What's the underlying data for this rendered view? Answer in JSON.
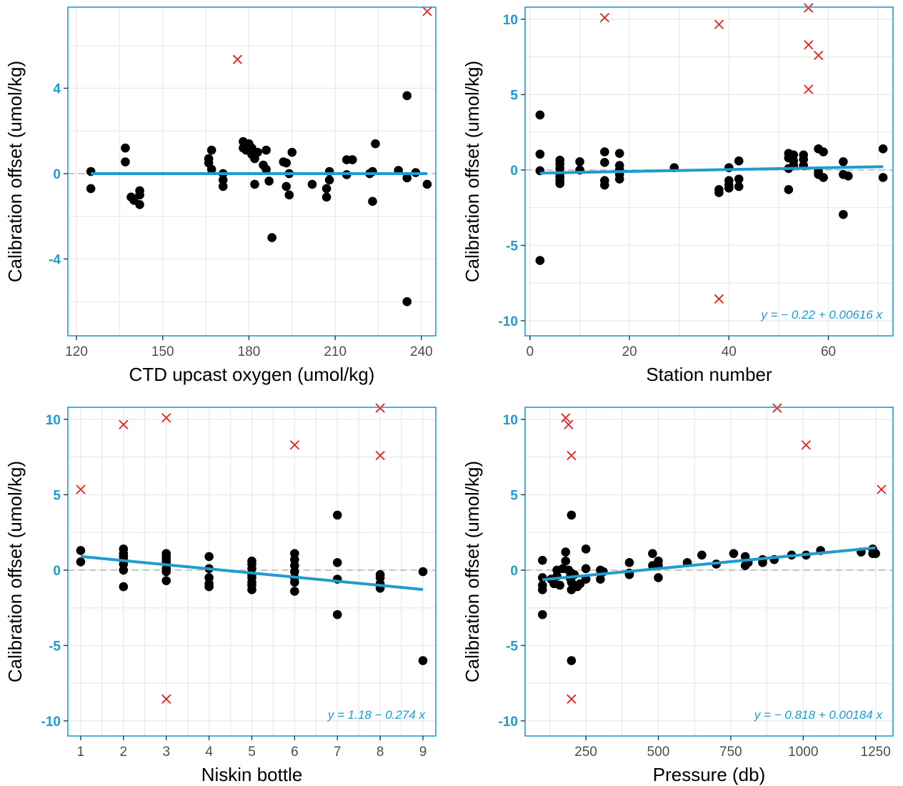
{
  "colors": {
    "points": "#000000",
    "outliers": "#e0231d",
    "fit_line": "#1f9bd1",
    "panel_border": "#1f9bd1",
    "zero_line": "#bdbdbd",
    "grid": "#ebebeb"
  },
  "chart_data": [
    {
      "type": "scatter",
      "xlabel": "CTD upcast oxygen (umol/kg)",
      "ylabel": "Calibration offset (umol/kg)",
      "xlim": [
        117,
        245
      ],
      "ylim": [
        -7.6,
        7.8
      ],
      "xticks": [
        120,
        150,
        180,
        210,
        240
      ],
      "yticks": [
        -4,
        0,
        4
      ],
      "ytick_labels": [
        "-4",
        "0",
        "4"
      ],
      "grid": true,
      "fit_line": {
        "x": [
          125,
          242
        ],
        "y": [
          0.0,
          0.0
        ]
      },
      "equation": "",
      "points": [
        [
          125,
          0.1
        ],
        [
          125,
          -0.7
        ],
        [
          137,
          1.2
        ],
        [
          137,
          0.55
        ],
        [
          139,
          -1.1
        ],
        [
          140,
          -1.25
        ],
        [
          142,
          -1.45
        ],
        [
          142,
          -0.8
        ],
        [
          142,
          -1.0
        ],
        [
          166,
          0.7
        ],
        [
          166,
          0.5
        ],
        [
          167,
          0.2
        ],
        [
          167,
          1.1
        ],
        [
          171,
          -0.6
        ],
        [
          171,
          -0.3
        ],
        [
          171,
          0.0
        ],
        [
          178,
          1.5
        ],
        [
          178,
          1.2
        ],
        [
          179,
          1.1
        ],
        [
          180,
          1.4
        ],
        [
          181,
          0.9
        ],
        [
          181,
          1.2
        ],
        [
          182,
          0.7
        ],
        [
          182,
          -0.5
        ],
        [
          183,
          1.0
        ],
        [
          185,
          0.4
        ],
        [
          186,
          0.2
        ],
        [
          186,
          1.1
        ],
        [
          187,
          -0.35
        ],
        [
          188,
          -3.0
        ],
        [
          192,
          0.55
        ],
        [
          193,
          0.5
        ],
        [
          193,
          -0.6
        ],
        [
          194,
          -1.0
        ],
        [
          194,
          0.0
        ],
        [
          195,
          1.0
        ],
        [
          202,
          -0.5
        ],
        [
          207,
          -0.7
        ],
        [
          207,
          -1.1
        ],
        [
          208,
          -0.3
        ],
        [
          208,
          0.1
        ],
        [
          214,
          0.65
        ],
        [
          214,
          -0.05
        ],
        [
          216,
          0.65
        ],
        [
          222,
          0.0
        ],
        [
          223,
          0.1
        ],
        [
          223,
          -1.3
        ],
        [
          224,
          1.4
        ],
        [
          232,
          0.15
        ],
        [
          235,
          -0.2
        ],
        [
          235,
          -6.0
        ],
        [
          235,
          3.65
        ],
        [
          238,
          0.05
        ],
        [
          242,
          -0.5
        ]
      ],
      "outliers": [
        [
          176,
          5.35
        ],
        [
          242,
          7.6
        ]
      ]
    },
    {
      "type": "scatter",
      "xlabel": "Station number",
      "ylabel": "Calibration offset (umol/kg)",
      "xlim": [
        -1,
        73
      ],
      "ylim": [
        -11,
        10.8
      ],
      "xticks": [
        0,
        20,
        40,
        60
      ],
      "yticks": [
        -10,
        -5,
        0,
        5,
        10
      ],
      "ytick_labels": [
        "-10",
        "-5",
        "0",
        "5",
        "10"
      ],
      "grid": true,
      "fit_line": {
        "x": [
          2,
          71
        ],
        "y": [
          -0.208,
          0.217
        ]
      },
      "equation": "y = − 0.22 + 0.00616 x",
      "points": [
        [
          2,
          3.65
        ],
        [
          2,
          1.05
        ],
        [
          2,
          -0.05
        ],
        [
          2,
          -6.0
        ],
        [
          6,
          0.65
        ],
        [
          6,
          0.4
        ],
        [
          6,
          0.1
        ],
        [
          6,
          -0.2
        ],
        [
          6,
          -0.45
        ],
        [
          6,
          -0.7
        ],
        [
          6,
          -0.9
        ],
        [
          10,
          0.55
        ],
        [
          10,
          0.0
        ],
        [
          15,
          1.2
        ],
        [
          15,
          0.5
        ],
        [
          15,
          -0.7
        ],
        [
          15,
          -1.0
        ],
        [
          18,
          1.1
        ],
        [
          18,
          0.3
        ],
        [
          18,
          0.0
        ],
        [
          18,
          -0.3
        ],
        [
          18,
          -0.6
        ],
        [
          29,
          0.15
        ],
        [
          38,
          -1.3
        ],
        [
          38,
          -1.5
        ],
        [
          40,
          0.15
        ],
        [
          40,
          -0.7
        ],
        [
          40,
          -1.0
        ],
        [
          40,
          -1.2
        ],
        [
          42,
          0.6
        ],
        [
          42,
          -0.6
        ],
        [
          42,
          -1.1
        ],
        [
          52,
          1.1
        ],
        [
          52,
          0.8
        ],
        [
          52,
          0.1
        ],
        [
          52,
          -1.3
        ],
        [
          53,
          1.0
        ],
        [
          53,
          0.6
        ],
        [
          53,
          0.3
        ],
        [
          55,
          1.0
        ],
        [
          55,
          0.7
        ],
        [
          55,
          0.3
        ],
        [
          58,
          1.4
        ],
        [
          58,
          -0.1
        ],
        [
          58,
          -0.3
        ],
        [
          59,
          1.2
        ],
        [
          59,
          -0.5
        ],
        [
          63,
          0.55
        ],
        [
          63,
          -0.3
        ],
        [
          63,
          -2.95
        ],
        [
          64,
          -0.4
        ],
        [
          71,
          1.4
        ],
        [
          71,
          -0.5
        ]
      ],
      "outliers": [
        [
          15,
          10.1
        ],
        [
          38,
          9.65
        ],
        [
          56,
          10.75
        ],
        [
          56,
          8.3
        ],
        [
          58,
          7.6
        ],
        [
          56,
          5.35
        ],
        [
          38,
          -8.55
        ]
      ]
    },
    {
      "type": "scatter",
      "xlabel": "Niskin bottle",
      "ylabel": "Calibration offset (umol/kg)",
      "xlim": [
        0.7,
        9.3
      ],
      "ylim": [
        -11,
        10.8
      ],
      "xticks": [
        1,
        2,
        3,
        4,
        5,
        6,
        7,
        8,
        9
      ],
      "yticks": [
        -10,
        -5,
        0,
        5,
        10
      ],
      "ytick_labels": [
        "-10",
        "-5",
        "0",
        "5",
        "10"
      ],
      "grid": true,
      "fit_line": {
        "x": [
          1,
          9
        ],
        "y": [
          0.906,
          -1.286
        ]
      },
      "equation": "y = 1.18 − 0.274 x",
      "points": [
        [
          1,
          1.3
        ],
        [
          1,
          0.55
        ],
        [
          2,
          1.4
        ],
        [
          2,
          1.1
        ],
        [
          2,
          0.9
        ],
        [
          2,
          0.7
        ],
        [
          2,
          0.4
        ],
        [
          2,
          0.0
        ],
        [
          2,
          -1.1
        ],
        [
          3,
          1.1
        ],
        [
          3,
          0.9
        ],
        [
          3,
          0.7
        ],
        [
          3,
          0.5
        ],
        [
          3,
          0.1
        ],
        [
          3,
          -0.1
        ],
        [
          3,
          -0.7
        ],
        [
          4,
          0.9
        ],
        [
          4,
          0.1
        ],
        [
          4,
          -0.5
        ],
        [
          4,
          -0.9
        ],
        [
          4,
          -1.1
        ],
        [
          5,
          0.6
        ],
        [
          5,
          0.4
        ],
        [
          5,
          0.1
        ],
        [
          5,
          -0.3
        ],
        [
          5,
          -0.5
        ],
        [
          5,
          -0.8
        ],
        [
          5,
          -1.0
        ],
        [
          5,
          -1.3
        ],
        [
          6,
          1.1
        ],
        [
          6,
          0.7
        ],
        [
          6,
          0.3
        ],
        [
          6,
          -0.1
        ],
        [
          6,
          -0.5
        ],
        [
          6,
          -0.8
        ],
        [
          6,
          -1.4
        ],
        [
          7,
          3.65
        ],
        [
          7,
          0.5
        ],
        [
          7,
          -0.6
        ],
        [
          7,
          -2.95
        ],
        [
          8,
          -0.3
        ],
        [
          8,
          -0.5
        ],
        [
          8,
          -0.9
        ],
        [
          8,
          -1.2
        ],
        [
          9,
          -0.1
        ],
        [
          9,
          -6.0
        ]
      ],
      "outliers": [
        [
          1,
          5.35
        ],
        [
          2,
          9.65
        ],
        [
          3,
          10.1
        ],
        [
          3,
          -8.55
        ],
        [
          6,
          8.3
        ],
        [
          8,
          10.75
        ],
        [
          8,
          7.6
        ]
      ]
    },
    {
      "type": "scatter",
      "xlabel": "Pressure (db)",
      "ylabel": "Calibration offset (umol/kg)",
      "xlim": [
        40,
        1310
      ],
      "ylim": [
        -11,
        10.8
      ],
      "xticks": [
        250,
        500,
        750,
        1000,
        1250
      ],
      "yticks": [
        -10,
        -5,
        0,
        5,
        10
      ],
      "ytick_labels": [
        "-10",
        "-5",
        "0",
        "5",
        "10"
      ],
      "grid": true,
      "fit_line": {
        "x": [
          100,
          1250
        ],
        "y": [
          -0.634,
          1.482
        ]
      },
      "equation": "y = − 0.818 + 0.00184 x",
      "points": [
        [
          100,
          0.65
        ],
        [
          100,
          -0.5
        ],
        [
          100,
          -1.0
        ],
        [
          100,
          -1.3
        ],
        [
          100,
          -2.95
        ],
        [
          130,
          -0.6
        ],
        [
          140,
          -0.9
        ],
        [
          150,
          0.0
        ],
        [
          150,
          -0.4
        ],
        [
          160,
          -1.0
        ],
        [
          170,
          0.1
        ],
        [
          180,
          1.2
        ],
        [
          180,
          0.6
        ],
        [
          190,
          0.0
        ],
        [
          195,
          -0.5
        ],
        [
          200,
          3.65
        ],
        [
          200,
          -0.2
        ],
        [
          200,
          -0.8
        ],
        [
          200,
          -1.3
        ],
        [
          200,
          -6.0
        ],
        [
          210,
          -0.3
        ],
        [
          220,
          -1.1
        ],
        [
          230,
          -0.9
        ],
        [
          250,
          1.4
        ],
        [
          250,
          0.1
        ],
        [
          250,
          -0.6
        ],
        [
          300,
          -0.6
        ],
        [
          300,
          0.0
        ],
        [
          310,
          -0.1
        ],
        [
          400,
          0.5
        ],
        [
          400,
          -0.2
        ],
        [
          400,
          -0.3
        ],
        [
          480,
          1.1
        ],
        [
          480,
          0.3
        ],
        [
          500,
          0.6
        ],
        [
          500,
          0.3
        ],
        [
          500,
          -0.5
        ],
        [
          600,
          0.5
        ],
        [
          650,
          1.0
        ],
        [
          700,
          0.4
        ],
        [
          760,
          1.1
        ],
        [
          800,
          0.9
        ],
        [
          800,
          0.3
        ],
        [
          810,
          0.5
        ],
        [
          860,
          0.7
        ],
        [
          860,
          0.5
        ],
        [
          900,
          0.7
        ],
        [
          960,
          1.0
        ],
        [
          1010,
          1.0
        ],
        [
          1060,
          1.3
        ],
        [
          1200,
          1.2
        ],
        [
          1240,
          1.4
        ],
        [
          1240,
          1.1
        ],
        [
          1250,
          1.1
        ]
      ],
      "outliers": [
        [
          180,
          10.1
        ],
        [
          190,
          9.65
        ],
        [
          200,
          7.6
        ],
        [
          200,
          -8.55
        ],
        [
          910,
          10.75
        ],
        [
          1010,
          8.3
        ],
        [
          1270,
          5.35
        ]
      ]
    }
  ]
}
